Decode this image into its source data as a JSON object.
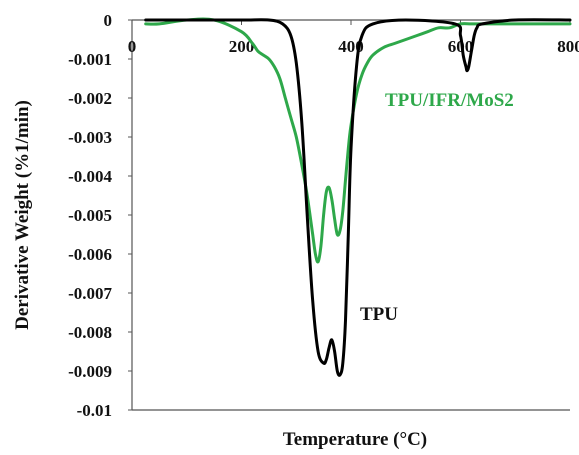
{
  "chart_data": {
    "type": "line",
    "title": "",
    "xlabel": "Temperature (°C)",
    "ylabel": "Derivative Weight (%1/min)",
    "xlim": [
      0,
      800
    ],
    "ylim": [
      -0.01,
      0
    ],
    "xticks": [
      "0",
      "200",
      "400",
      "600",
      "800"
    ],
    "yticks": [
      "0",
      "-0.001",
      "-0.002",
      "-0.003",
      "-0.004",
      "-0.005",
      "-0.006",
      "-0.007",
      "-0.008",
      "-0.009",
      "-0.01"
    ],
    "grid": false,
    "legend": "inline labels",
    "series": [
      {
        "name": "TPU",
        "color": "#000000",
        "x": [
          25,
          100,
          200,
          250,
          275,
          290,
          300,
          310,
          320,
          330,
          340,
          350,
          355,
          360,
          365,
          370,
          375,
          380,
          385,
          390,
          395,
          400,
          410,
          420,
          440,
          500,
          590,
          600,
          605,
          610,
          612,
          615,
          620,
          625,
          630,
          640,
          700,
          800
        ],
        "y": [
          0,
          0,
          0,
          0,
          -0.0001,
          -0.0004,
          -0.0011,
          -0.0026,
          -0.005,
          -0.0072,
          -0.0085,
          -0.0088,
          -0.0087,
          -0.0084,
          -0.0082,
          -0.0085,
          -0.009,
          -0.0091,
          -0.0088,
          -0.0077,
          -0.0055,
          -0.0033,
          -0.0012,
          -0.0004,
          -0.0001,
          0,
          -0.0001,
          -0.0004,
          -0.0009,
          -0.0012,
          -0.0013,
          -0.0012,
          -0.0008,
          -0.0004,
          -0.0002,
          -0.0001,
          0,
          0
        ]
      },
      {
        "name": "TPU/IFR/MoS2",
        "color": "#2ea84a",
        "x": [
          25,
          50,
          100,
          150,
          200,
          220,
          230,
          240,
          250,
          260,
          270,
          280,
          290,
          300,
          310,
          320,
          330,
          335,
          340,
          345,
          350,
          355,
          360,
          365,
          370,
          375,
          380,
          385,
          390,
          395,
          400,
          410,
          420,
          430,
          440,
          460,
          480,
          500,
          520,
          540,
          560,
          580,
          600,
          620,
          650,
          700,
          750,
          800
        ],
        "y": [
          -0.0001,
          -0.0001,
          0,
          0,
          -0.0003,
          -0.0006,
          -0.0008,
          -0.0009,
          -0.001,
          -0.0012,
          -0.0015,
          -0.002,
          -0.0025,
          -0.003,
          -0.0037,
          -0.0045,
          -0.0055,
          -0.006,
          -0.0062,
          -0.0058,
          -0.005,
          -0.0044,
          -0.0043,
          -0.0046,
          -0.0051,
          -0.0055,
          -0.0054,
          -0.0049,
          -0.0041,
          -0.0033,
          -0.0027,
          -0.0019,
          -0.0014,
          -0.0011,
          -0.0009,
          -0.0007,
          -0.0006,
          -0.0005,
          -0.0004,
          -0.0003,
          -0.0002,
          -0.0002,
          -0.0001,
          -0.0001,
          -0.0001,
          -0.0001,
          -0.0001,
          -0.0001
        ]
      }
    ]
  }
}
